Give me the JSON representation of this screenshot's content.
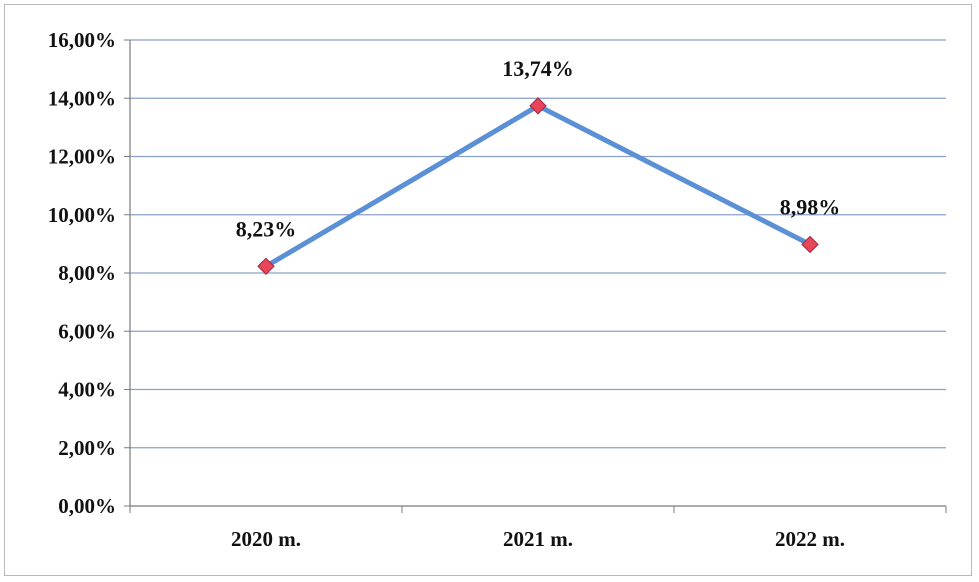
{
  "chart_data": {
    "type": "line",
    "categories": [
      "2020 m.",
      "2021 m.",
      "2022 m."
    ],
    "series": [
      {
        "values": [
          8.23,
          13.74,
          8.98
        ],
        "labels": [
          "8,23%",
          "13,74%",
          "8,98%"
        ],
        "color": "#5b8fd6",
        "marker_color": "#e8445a"
      }
    ],
    "yticks": [
      0,
      2,
      4,
      6,
      8,
      10,
      12,
      14,
      16
    ],
    "ytick_labels": [
      "0,00%",
      "2,00%",
      "4,00%",
      "6,00%",
      "8,00%",
      "10,00%",
      "12,00%",
      "14,00%",
      "16,00%"
    ],
    "ylim": [
      0,
      16
    ],
    "grid": true,
    "legend": "none",
    "gridline_color": "#8aa0c8"
  }
}
